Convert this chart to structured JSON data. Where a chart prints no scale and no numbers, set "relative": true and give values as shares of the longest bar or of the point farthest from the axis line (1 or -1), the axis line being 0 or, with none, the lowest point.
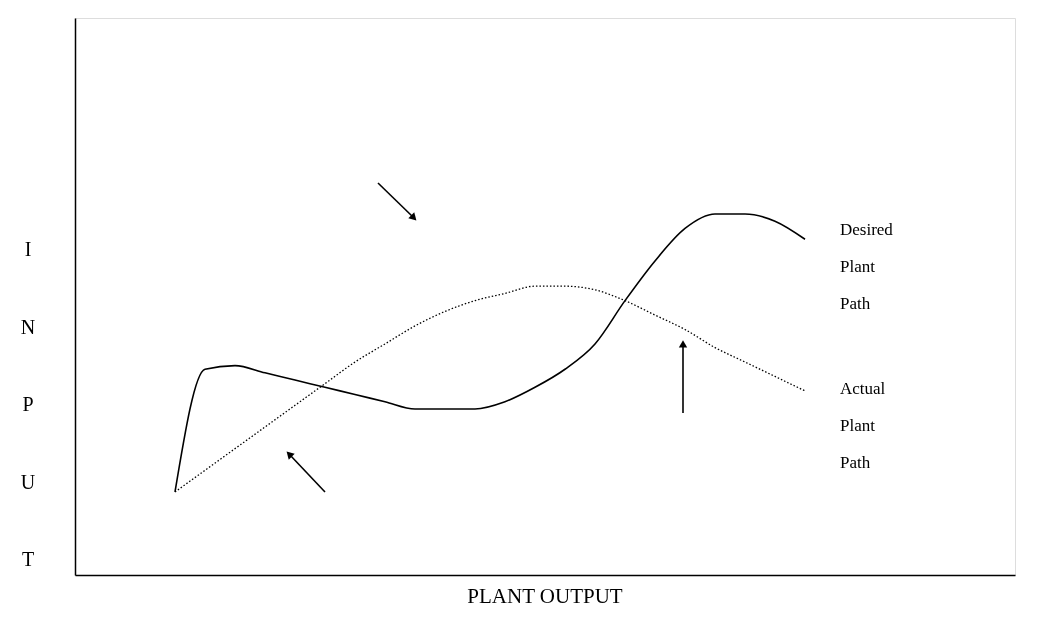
{
  "chart_data": {
    "type": "line",
    "relative": true,
    "xlabel": "PLANT OUTPUT",
    "annotations": [
      "I",
      "N",
      "P",
      "U",
      "T"
    ],
    "legend": false,
    "grid": false,
    "marker": "none",
    "categories": [
      null,
      null,
      null,
      null,
      null,
      null,
      null,
      null,
      null,
      null,
      null,
      null,
      null,
      null,
      null,
      null,
      null,
      null,
      null,
      null,
      null,
      null
    ],
    "series": [
      {
        "name": "Desired Plant Path",
        "color": "#000000",
        "line_style": "solid",
        "values": [
          0.23,
          0.57,
          0.58,
          0.56,
          0.54,
          0.52,
          0.5,
          0.48,
          0.46,
          0.46,
          0.46,
          0.48,
          0.52,
          0.57,
          0.64,
          0.76,
          0.87,
          0.96,
          1.0,
          1.0,
          0.98,
          0.93
        ]
      },
      {
        "name": "Actual Plant Path",
        "color": "#000000",
        "line_style": "dotted",
        "values": [
          0.23,
          0.29,
          0.35,
          0.41,
          0.47,
          0.53,
          0.59,
          0.64,
          0.69,
          0.73,
          0.76,
          0.78,
          0.8,
          0.8,
          0.79,
          0.76,
          0.72,
          0.68,
          0.63,
          0.59,
          0.55,
          0.51
        ]
      }
    ]
  }
}
